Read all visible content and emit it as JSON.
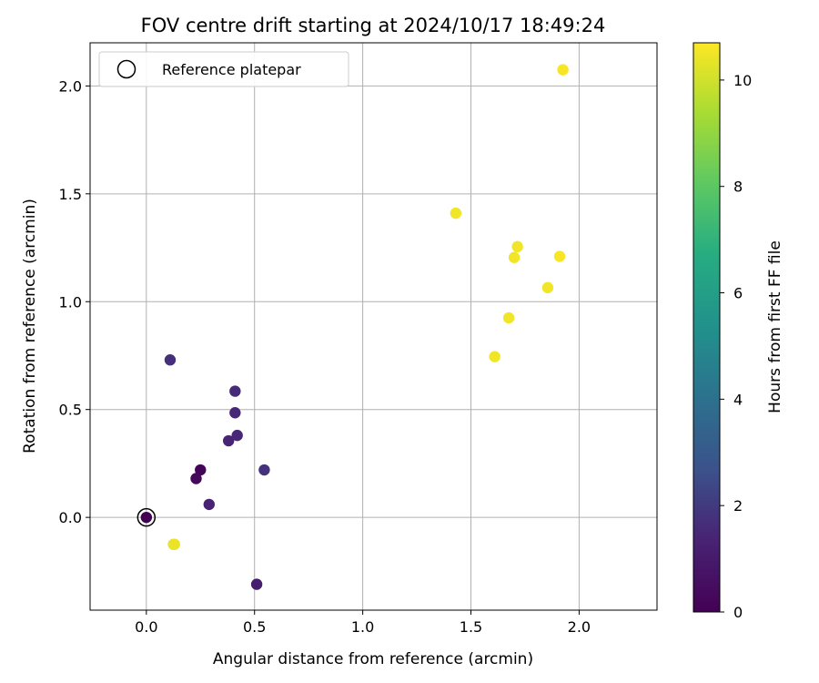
{
  "chart_data": {
    "type": "scatter",
    "title": "FOV centre drift starting at 2024/10/17 18:49:24",
    "xlabel": "Angular distance from reference (arcmin)",
    "ylabel": "Rotation from reference (arcmin)",
    "xlim": [
      -0.26,
      2.36
    ],
    "ylim": [
      -0.43,
      2.2
    ],
    "x_ticks": [
      0.0,
      0.5,
      1.0,
      1.5,
      2.0
    ],
    "y_ticks": [
      0.0,
      0.5,
      1.0,
      1.5,
      2.0
    ],
    "x_tick_labels": [
      "0.0",
      "0.5",
      "1.0",
      "1.5",
      "2.0"
    ],
    "y_tick_labels": [
      "0.0",
      "0.5",
      "1.0",
      "1.5",
      "2.0"
    ],
    "grid": true,
    "legend": {
      "placement": "top-left",
      "entries": [
        "Reference platepar"
      ]
    },
    "reference_point": {
      "x": 0.0,
      "y": 0.0,
      "label": "Reference platepar"
    },
    "colorbar": {
      "label": "Hours from first FF file",
      "range": [
        0,
        10.7
      ],
      "ticks": [
        0,
        2,
        4,
        6,
        8,
        10
      ],
      "tick_labels": [
        "0",
        "2",
        "4",
        "6",
        "8",
        "10"
      ],
      "colormap": "viridis"
    },
    "points": [
      {
        "x": 0.0,
        "y": 0.0,
        "hours": 0.0
      },
      {
        "x": 0.25,
        "y": 0.22,
        "hours": 0.15
      },
      {
        "x": 0.23,
        "y": 0.18,
        "hours": 0.3
      },
      {
        "x": 0.29,
        "y": 0.06,
        "hours": 1.3
      },
      {
        "x": 0.38,
        "y": 0.355,
        "hours": 1.4
      },
      {
        "x": 0.42,
        "y": 0.38,
        "hours": 1.5
      },
      {
        "x": 0.41,
        "y": 0.485,
        "hours": 1.5
      },
      {
        "x": 0.41,
        "y": 0.585,
        "hours": 1.6
      },
      {
        "x": 0.11,
        "y": 0.73,
        "hours": 1.7
      },
      {
        "x": 0.545,
        "y": 0.22,
        "hours": 1.8
      },
      {
        "x": 0.51,
        "y": -0.31,
        "hours": 1.1
      },
      {
        "x": 0.13,
        "y": -0.125,
        "hours": 10.4
      },
      {
        "x": 0.125,
        "y": -0.125,
        "hours": 10.4
      },
      {
        "x": 1.43,
        "y": 1.41,
        "hours": 10.5
      },
      {
        "x": 1.61,
        "y": 0.745,
        "hours": 10.5
      },
      {
        "x": 1.675,
        "y": 0.925,
        "hours": 10.5
      },
      {
        "x": 1.7,
        "y": 1.205,
        "hours": 10.5
      },
      {
        "x": 1.715,
        "y": 1.255,
        "hours": 10.5
      },
      {
        "x": 1.855,
        "y": 1.065,
        "hours": 10.5
      },
      {
        "x": 1.91,
        "y": 1.21,
        "hours": 10.6
      },
      {
        "x": 1.925,
        "y": 2.075,
        "hours": 10.6
      }
    ]
  }
}
